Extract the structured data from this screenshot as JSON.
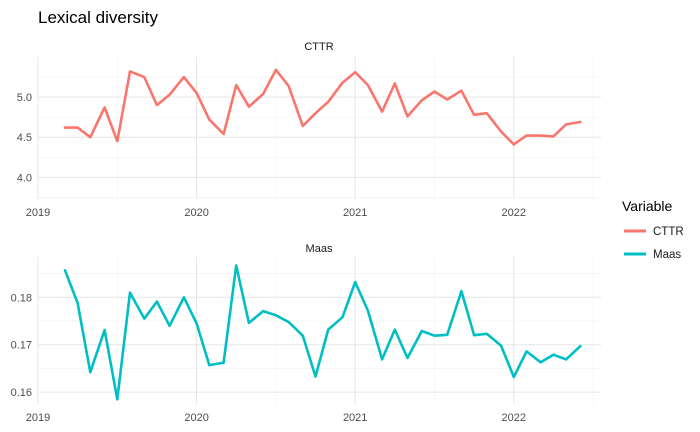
{
  "chart_data": {
    "type": "line",
    "title": "Lexical diversity",
    "x_ticks": [
      "2019",
      "2020",
      "2021",
      "2022"
    ],
    "xlim": [
      2019.0,
      2022.55
    ],
    "x": [
      2019.17,
      2019.25,
      2019.33,
      2019.42,
      2019.5,
      2019.58,
      2019.67,
      2019.75,
      2019.83,
      2019.92,
      2020.0,
      2020.08,
      2020.17,
      2020.25,
      2020.33,
      2020.42,
      2020.5,
      2020.58,
      2020.67,
      2020.75,
      2020.83,
      2020.92,
      2021.0,
      2021.08,
      2021.17,
      2021.25,
      2021.33,
      2021.42,
      2021.5,
      2021.58,
      2021.67,
      2021.75,
      2021.83,
      2021.92,
      2022.0,
      2022.08,
      2022.17,
      2022.25,
      2022.33,
      2022.42
    ],
    "legend": {
      "title": "Variable",
      "position": "right",
      "entries": [
        {
          "label": "CTTR",
          "color": "#F8766D"
        },
        {
          "label": "Maas",
          "color": "#00BFC4"
        }
      ]
    },
    "panels": [
      {
        "strip": "CTTR",
        "color": "#F8766D",
        "ylim": [
          3.73,
          5.5
        ],
        "y_ticks": [
          "4.0",
          "4.5",
          "5.0"
        ],
        "y_tick_values": [
          4.0,
          4.5,
          5.0
        ],
        "values": [
          4.62,
          4.62,
          4.5,
          4.87,
          4.45,
          5.32,
          5.25,
          4.9,
          5.03,
          5.25,
          5.05,
          4.72,
          4.54,
          5.15,
          4.88,
          5.04,
          5.34,
          5.14,
          4.64,
          4.8,
          4.94,
          5.18,
          5.31,
          5.15,
          4.82,
          5.17,
          4.76,
          4.96,
          5.07,
          4.97,
          5.08,
          4.78,
          4.8,
          4.57,
          4.41,
          4.52,
          4.52,
          4.51,
          4.66,
          4.69
        ]
      },
      {
        "strip": "Maas",
        "color": "#00BFC4",
        "ylim": [
          0.1575,
          0.1885
        ],
        "y_ticks": [
          "0.16",
          "0.17",
          "0.18"
        ],
        "y_tick_values": [
          0.16,
          0.17,
          0.18
        ],
        "values": [
          0.1857,
          0.1788,
          0.1642,
          0.1731,
          0.1585,
          0.181,
          0.1755,
          0.1791,
          0.174,
          0.18,
          0.1745,
          0.1657,
          0.1662,
          0.1867,
          0.1746,
          0.1771,
          0.1762,
          0.1748,
          0.1719,
          0.1633,
          0.1732,
          0.1758,
          0.1832,
          0.1772,
          0.1669,
          0.1732,
          0.1672,
          0.1729,
          0.1719,
          0.1721,
          0.1813,
          0.172,
          0.1723,
          0.1698,
          0.1632,
          0.1686,
          0.1663,
          0.1679,
          0.1669,
          0.1697
        ]
      }
    ]
  }
}
